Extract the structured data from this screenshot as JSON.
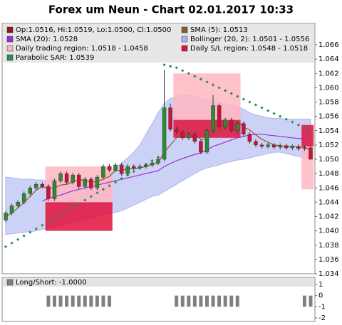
{
  "chart_data": {
    "type": "candlestick",
    "title": "Forex um Neun - Chart 02.01.2017 10:33",
    "ylim": [
      1.034,
      1.066
    ],
    "yticks": [
      1.034,
      1.036,
      1.038,
      {
        "value": 1.04,
        "label": "1.040"
      },
      1.042,
      1.044,
      1.046,
      1.048,
      {
        "value": 1.05,
        "label": "1.050"
      },
      1.052,
      1.054,
      1.056,
      1.058,
      {
        "value": 1.06,
        "label": "1.060"
      },
      1.062,
      1.064,
      1.066
    ],
    "series": [
      {
        "name": "Op:1.0516, Hi:1.0519, Lo:1.0500, Cl:1.0500",
        "type": "candlestick",
        "color": "#8b1a1a",
        "up_color": "#2e8b2e",
        "down_color": "#d0103a",
        "open": [
          1.0415,
          1.0425,
          1.0435,
          1.044,
          1.0452,
          1.046,
          1.0465,
          1.0462,
          1.0445,
          1.047,
          1.048,
          1.0468,
          1.0478,
          1.0462,
          1.0472,
          1.046,
          1.0475,
          1.049,
          1.0485,
          1.0492,
          1.048,
          1.049,
          1.0488,
          1.049,
          1.0492,
          1.0495,
          1.05,
          1.0572,
          1.0542,
          1.0538,
          1.053,
          1.0535,
          1.0525,
          1.051,
          1.054,
          1.0575,
          1.0545,
          1.0555,
          1.054,
          1.055,
          1.0535,
          1.0525,
          1.052,
          1.0518,
          1.052,
          1.0517,
          1.0519,
          1.0516,
          1.0518,
          1.0515,
          1.0516
        ],
        "high": [
          1.0428,
          1.0438,
          1.0443,
          1.0455,
          1.0463,
          1.0468,
          1.0468,
          1.0465,
          1.0473,
          1.0483,
          1.0483,
          1.0481,
          1.0481,
          1.0475,
          1.0475,
          1.0478,
          1.0493,
          1.0493,
          1.0495,
          1.0495,
          1.0493,
          1.0493,
          1.0493,
          1.0495,
          1.0498,
          1.0503,
          1.0625,
          1.0578,
          1.0545,
          1.0541,
          1.0538,
          1.0538,
          1.0528,
          1.0543,
          1.059,
          1.0578,
          1.0558,
          1.0558,
          1.0553,
          1.0553,
          1.0538,
          1.0528,
          1.0523,
          1.0523,
          1.0523,
          1.0522,
          1.0522,
          1.0521,
          1.0521,
          1.0519,
          1.0519
        ],
        "low": [
          1.0412,
          1.0422,
          1.0432,
          1.0437,
          1.0449,
          1.0457,
          1.0459,
          1.0442,
          1.0442,
          1.0467,
          1.0465,
          1.0465,
          1.0459,
          1.0459,
          1.0457,
          1.0457,
          1.0472,
          1.0482,
          1.0482,
          1.0477,
          1.0477,
          1.0485,
          1.0485,
          1.0487,
          1.0489,
          1.0492,
          1.0497,
          1.0539,
          1.0535,
          1.0527,
          1.0527,
          1.0522,
          1.0507,
          1.0507,
          1.0537,
          1.0542,
          1.0542,
          1.0537,
          1.0537,
          1.0532,
          1.0522,
          1.0517,
          1.0515,
          1.0515,
          1.0514,
          1.0514,
          1.0513,
          1.0513,
          1.0512,
          1.0512,
          1.05
        ],
        "close": [
          1.0425,
          1.0435,
          1.044,
          1.0452,
          1.046,
          1.0465,
          1.0462,
          1.0445,
          1.047,
          1.048,
          1.0468,
          1.0478,
          1.0462,
          1.0472,
          1.046,
          1.0475,
          1.049,
          1.0485,
          1.0492,
          1.048,
          1.049,
          1.0488,
          1.049,
          1.0492,
          1.0495,
          1.05,
          1.0572,
          1.0542,
          1.0538,
          1.053,
          1.0535,
          1.0525,
          1.051,
          1.054,
          1.0575,
          1.0545,
          1.0555,
          1.054,
          1.055,
          1.0535,
          1.0525,
          1.052,
          1.0518,
          1.052,
          1.0517,
          1.0519,
          1.0516,
          1.0518,
          1.0515,
          1.0516,
          1.05
        ]
      },
      {
        "name": "SMA (5): 1.0513",
        "type": "line",
        "color": "#8b5a2b",
        "values": [
          1.042,
          1.0425,
          1.0432,
          1.044,
          1.0448,
          1.0457,
          1.0462,
          1.0459,
          1.046,
          1.0464,
          1.0465,
          1.0468,
          1.0472,
          1.047,
          1.0468,
          1.0469,
          1.0472,
          1.0476,
          1.0485,
          1.0484,
          1.0487,
          1.0487,
          1.0488,
          1.049,
          1.0493,
          1.0495,
          1.051,
          1.052,
          1.053,
          1.0536,
          1.0543,
          1.0534,
          1.0528,
          1.0528,
          1.0537,
          1.0539,
          1.0545,
          1.0551,
          1.0553,
          1.0545,
          1.0541,
          1.0534,
          1.0528,
          1.0524,
          1.052,
          1.0519,
          1.0518,
          1.0518,
          1.0517,
          1.0517,
          1.0513
        ]
      },
      {
        "name": "SMA (20): 1.0528",
        "type": "line",
        "color": "#9932cc",
        "values": [
          null,
          null,
          null,
          null,
          null,
          null,
          1.0442,
          1.0445,
          1.0448,
          1.045,
          1.0453,
          1.0456,
          1.0458,
          1.046,
          1.0462,
          1.0464,
          1.0466,
          1.0468,
          1.047,
          1.0472,
          1.0474,
          1.0476,
          1.0478,
          1.048,
          1.0482,
          1.0484,
          1.049,
          1.0494,
          1.0498,
          1.0501,
          1.0504,
          1.0507,
          1.0509,
          1.0513,
          1.0518,
          1.0521,
          1.0524,
          1.0527,
          1.053,
          1.0532,
          1.0534,
          1.0535,
          1.0535,
          1.0534,
          1.0533,
          1.0532,
          1.0531,
          1.053,
          1.0529,
          1.0529,
          1.0528
        ]
      },
      {
        "name": "Bollinger (20, 2): 1.0501 - 1.0556",
        "type": "band",
        "color": "#aab4f0",
        "upper": [
          1.0475,
          1.0474,
          1.0473,
          1.0472,
          1.0472,
          1.0471,
          1.0471,
          1.047,
          1.047,
          1.047,
          1.047,
          1.047,
          1.0471,
          1.0472,
          1.0473,
          1.0474,
          1.0478,
          1.0482,
          1.0488,
          1.0495,
          1.0502,
          1.051,
          1.052,
          1.0535,
          1.055,
          1.0565,
          1.0578,
          1.0585,
          1.0588,
          1.059,
          1.059,
          1.0588,
          1.0585,
          1.0583,
          1.0582,
          1.058,
          1.0578,
          1.0576,
          1.0574,
          1.057,
          1.0565,
          1.0562,
          1.056,
          1.0558,
          1.0557,
          1.0557,
          1.0556,
          1.0556,
          1.0556,
          1.0556,
          1.0556
        ],
        "lower": [
          1.0395,
          1.0396,
          1.0397,
          1.0398,
          1.0399,
          1.04,
          1.0402,
          1.0404,
          1.0406,
          1.0408,
          1.041,
          1.0412,
          1.0414,
          1.0416,
          1.0418,
          1.042,
          1.0422,
          1.0424,
          1.0426,
          1.0428,
          1.0432,
          1.0436,
          1.044,
          1.0444,
          1.0448,
          1.045,
          1.0455,
          1.046,
          1.0465,
          1.047,
          1.0475,
          1.048,
          1.0485,
          1.0488,
          1.049,
          1.0492,
          1.0495,
          1.0497,
          1.0499,
          1.05,
          1.0502,
          1.0504,
          1.0506,
          1.0508,
          1.051,
          1.051,
          1.0508,
          1.0506,
          1.0504,
          1.0502,
          1.0501
        ]
      },
      {
        "name": "Daily trading region: 1.0518 - 1.0458",
        "type": "region",
        "color": "#ffb6c1",
        "regions": [
          {
            "from": 7,
            "to": 17,
            "range": [
              1.049,
              1.044
            ]
          },
          {
            "from": 28,
            "to": 38,
            "range": [
              1.062,
              1.0555
            ]
          },
          {
            "from": 49,
            "to": 50,
            "range": [
              1.0518,
              1.0458
            ]
          }
        ]
      },
      {
        "name": "Daily S/L region: 1.0548 - 1.0518",
        "type": "region",
        "color": "#e0103a",
        "regions": [
          {
            "from": 7,
            "to": 17,
            "range": [
              1.044,
              1.04
            ]
          },
          {
            "from": 28,
            "to": 38,
            "range": [
              1.0555,
              1.053
            ]
          },
          {
            "from": 49,
            "to": 50,
            "range": [
              1.0548,
              1.0518
            ]
          }
        ]
      },
      {
        "name": "Parabolic SAR: 1.0539",
        "type": "dots",
        "color": "#2e8b57",
        "values": [
          1.0378,
          1.0383,
          1.0388,
          1.0393,
          1.0398,
          1.0403,
          1.0408,
          1.0413,
          1.0418,
          1.0423,
          1.0428,
          1.0433,
          1.0438,
          1.0443,
          1.0448,
          1.0453,
          1.0458,
          1.0463,
          1.0468,
          1.0473,
          1.0478,
          1.0483,
          1.0488,
          1.0493,
          1.0498,
          1.0503,
          1.0632,
          1.063,
          1.0628,
          1.0624,
          1.062,
          1.0616,
          1.0612,
          1.0608,
          1.0604,
          1.06,
          1.0596,
          1.0592,
          1.0588,
          1.0584,
          1.058,
          1.0576,
          1.0572,
          1.0568,
          1.0564,
          1.056,
          1.0556,
          1.0552,
          1.0548,
          1.0544,
          1.0539
        ]
      }
    ],
    "sub_chart": {
      "type": "bar",
      "name": "Long/Short: -1.0000",
      "color": "#808080",
      "values": [
        0,
        0,
        0,
        0,
        0,
        0,
        0,
        -1,
        -1,
        -1,
        -1,
        -1,
        -1,
        -1,
        -1,
        -1,
        -1,
        -1,
        0,
        0,
        0,
        0,
        0,
        0,
        0,
        0,
        0,
        0,
        -1,
        -1,
        -1,
        -1,
        -1,
        -1,
        -1,
        -1,
        -1,
        -1,
        -1,
        0,
        0,
        0,
        0,
        0,
        0,
        0,
        0,
        0,
        0,
        -1,
        -1
      ],
      "ylim": [
        -2,
        1
      ],
      "yticks": [
        1,
        0,
        -1,
        -2
      ]
    }
  }
}
